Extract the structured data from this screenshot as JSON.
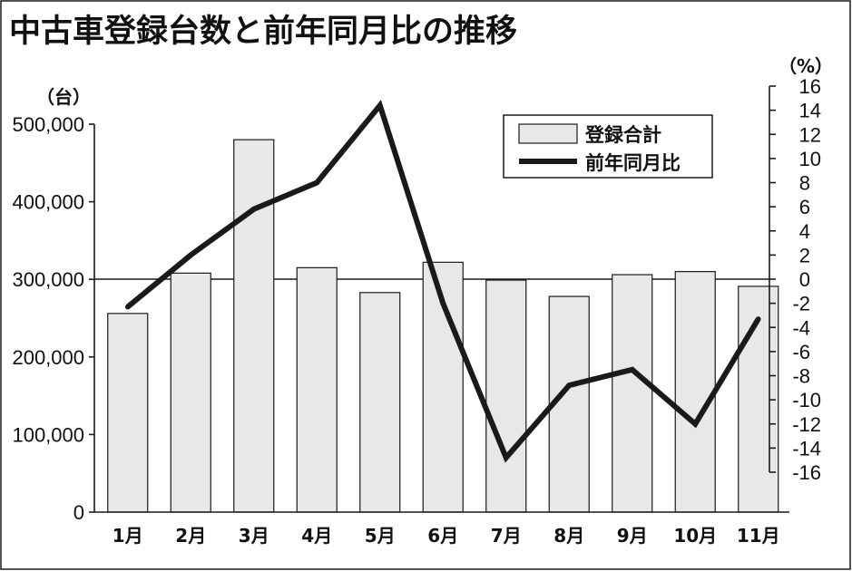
{
  "chart_data": {
    "type": "bar",
    "title": "中古車登録台数と前年同月比の推移",
    "categories": [
      "1月",
      "2月",
      "3月",
      "4月",
      "5月",
      "6月",
      "7月",
      "8月",
      "9月",
      "10月",
      "11月"
    ],
    "series": [
      {
        "name": "登録合計",
        "type": "bar",
        "axis": "left",
        "values": [
          256000,
          308000,
          480000,
          315000,
          283000,
          322000,
          299000,
          278000,
          306000,
          310000,
          291000
        ]
      },
      {
        "name": "前年同月比",
        "type": "line",
        "axis": "right",
        "values": [
          -2.3,
          2.0,
          5.8,
          8.0,
          14.4,
          -2.0,
          -14.8,
          -8.8,
          -7.5,
          -12.0,
          -3.3
        ]
      }
    ],
    "y_left": {
      "label": "（台）",
      "ylim": [
        0,
        500000
      ],
      "ticks": [
        0,
        100000,
        200000,
        300000,
        400000,
        500000
      ],
      "tick_labels": [
        "0",
        "100,000",
        "200,000",
        "300,000",
        "400,000",
        "500,000"
      ]
    },
    "y_right": {
      "label": "（%）",
      "ylim": [
        -16,
        16
      ],
      "ticks": [
        -16,
        -14,
        -12,
        -10,
        -8,
        -6,
        -4,
        -2,
        0,
        2,
        4,
        6,
        8,
        10,
        12,
        14,
        16
      ],
      "tick_labels": [
        "-16",
        "-14",
        "-12",
        "-10",
        "-8",
        "-6",
        "-4",
        "-2",
        "0",
        "2",
        "4",
        "6",
        "8",
        "10",
        "12",
        "14",
        "16"
      ]
    },
    "reference_line": {
      "axis": "right",
      "value": 0
    },
    "grid": false,
    "legend": {
      "position": "top-right"
    },
    "colors": {
      "bar_fill": "#e8e8e8",
      "bar_edge": "#1a1a1a",
      "line": "#1a1a1a"
    }
  }
}
